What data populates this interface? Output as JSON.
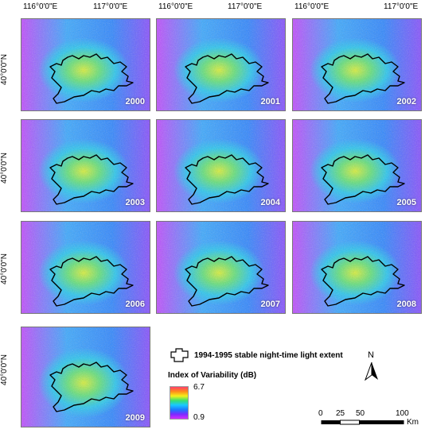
{
  "longitude_labels": [
    "116°0'0\"E",
    "117°0'0\"E"
  ],
  "latitude_label": "40°0'0\"N",
  "panels": [
    {
      "year": "2000"
    },
    {
      "year": "2001"
    },
    {
      "year": "2002"
    },
    {
      "year": "2003"
    },
    {
      "year": "2004"
    },
    {
      "year": "2005"
    },
    {
      "year": "2006"
    },
    {
      "year": "2007"
    },
    {
      "year": "2008"
    },
    {
      "year": "2009"
    }
  ],
  "legend": {
    "extent_label": "1994-1995 stable night-time light extent",
    "index_title": "Index of Variability (dB)",
    "max_value": "6.7",
    "min_value": "0.9",
    "ramp_colors": [
      "#ff3f6a",
      "#ff8a1a",
      "#f5f01a",
      "#38e070",
      "#18c8ff",
      "#1a7aff",
      "#7a2aff",
      "#d52cff"
    ]
  },
  "north_arrow": {
    "label": "N"
  },
  "scale_bar": {
    "ticks": [
      "0",
      "25",
      "50",
      "100"
    ],
    "unit": "Km"
  }
}
